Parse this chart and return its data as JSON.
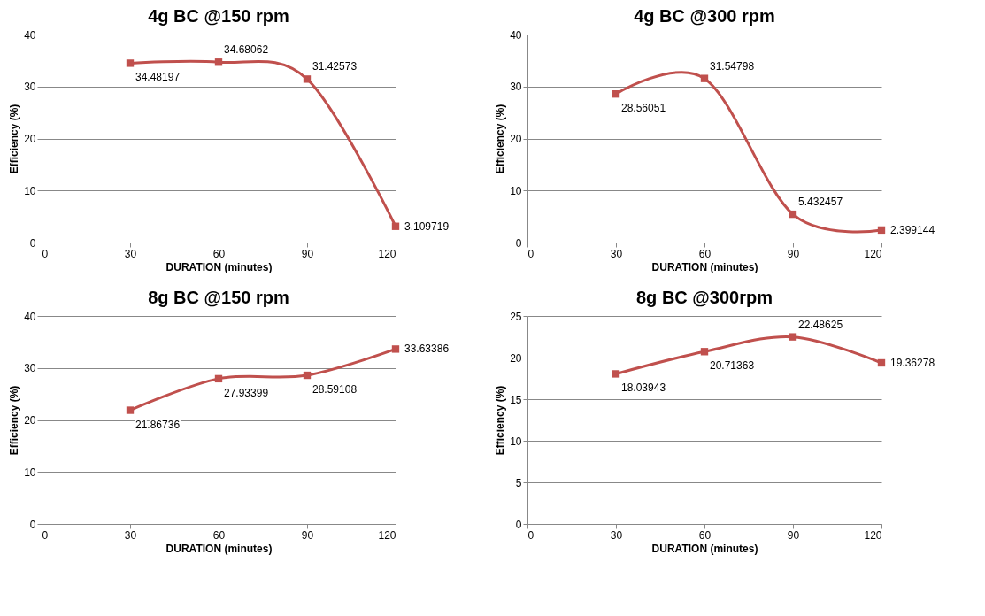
{
  "chart_data": [
    {
      "type": "line",
      "title": "4g BC @150 rpm",
      "xlabel": "DURATION (minutes)",
      "ylabel": "Efficiency (%)",
      "x": [
        30,
        60,
        90,
        120
      ],
      "series": [
        {
          "color": "#c0504d",
          "values": [
            34.48197,
            34.68062,
            31.42573,
            3.109719
          ]
        }
      ],
      "xlim": [
        0,
        120
      ],
      "xticks": [
        0,
        30,
        60,
        90,
        120
      ],
      "ylim": [
        0,
        40
      ],
      "yticks": [
        0,
        10,
        20,
        30,
        40
      ],
      "grid": "y",
      "marker": "square",
      "data_labels": true
    },
    {
      "type": "line",
      "title": "4g BC @300 rpm",
      "xlabel": "DURATION (minutes)",
      "ylabel": "Efficiency (%)",
      "x": [
        30,
        60,
        90,
        120
      ],
      "series": [
        {
          "color": "#c0504d",
          "values": [
            28.56051,
            31.54798,
            5.432457,
            2.399144
          ]
        }
      ],
      "xlim": [
        0,
        120
      ],
      "xticks": [
        0,
        30,
        60,
        90,
        120
      ],
      "ylim": [
        0,
        40
      ],
      "yticks": [
        0,
        10,
        20,
        30,
        40
      ],
      "grid": "y",
      "marker": "square",
      "data_labels": true
    },
    {
      "type": "line",
      "title": "8g BC @150 rpm",
      "xlabel": "DURATION (minutes)",
      "ylabel": "Efficiency (%)",
      "x": [
        30,
        60,
        90,
        120
      ],
      "series": [
        {
          "color": "#c0504d",
          "values": [
            21.86736,
            27.93399,
            28.59108,
            33.63386
          ]
        }
      ],
      "xlim": [
        0,
        120
      ],
      "xticks": [
        0,
        30,
        60,
        90,
        120
      ],
      "ylim": [
        0,
        40
      ],
      "yticks": [
        0,
        10,
        20,
        30,
        40
      ],
      "grid": "y",
      "marker": "square",
      "data_labels": true
    },
    {
      "type": "line",
      "title": "8g BC @300rpm",
      "xlabel": "DURATION (minutes)",
      "ylabel": "Efficiency (%)",
      "x": [
        30,
        60,
        90,
        120
      ],
      "series": [
        {
          "color": "#c0504d",
          "values": [
            18.03943,
            20.71363,
            22.48625,
            19.36278
          ]
        }
      ],
      "xlim": [
        0,
        120
      ],
      "xticks": [
        0,
        30,
        60,
        90,
        120
      ],
      "ylim": [
        0,
        25
      ],
      "yticks": [
        0,
        5,
        10,
        15,
        20,
        25
      ],
      "grid": "y",
      "marker": "square",
      "data_labels": true
    }
  ]
}
